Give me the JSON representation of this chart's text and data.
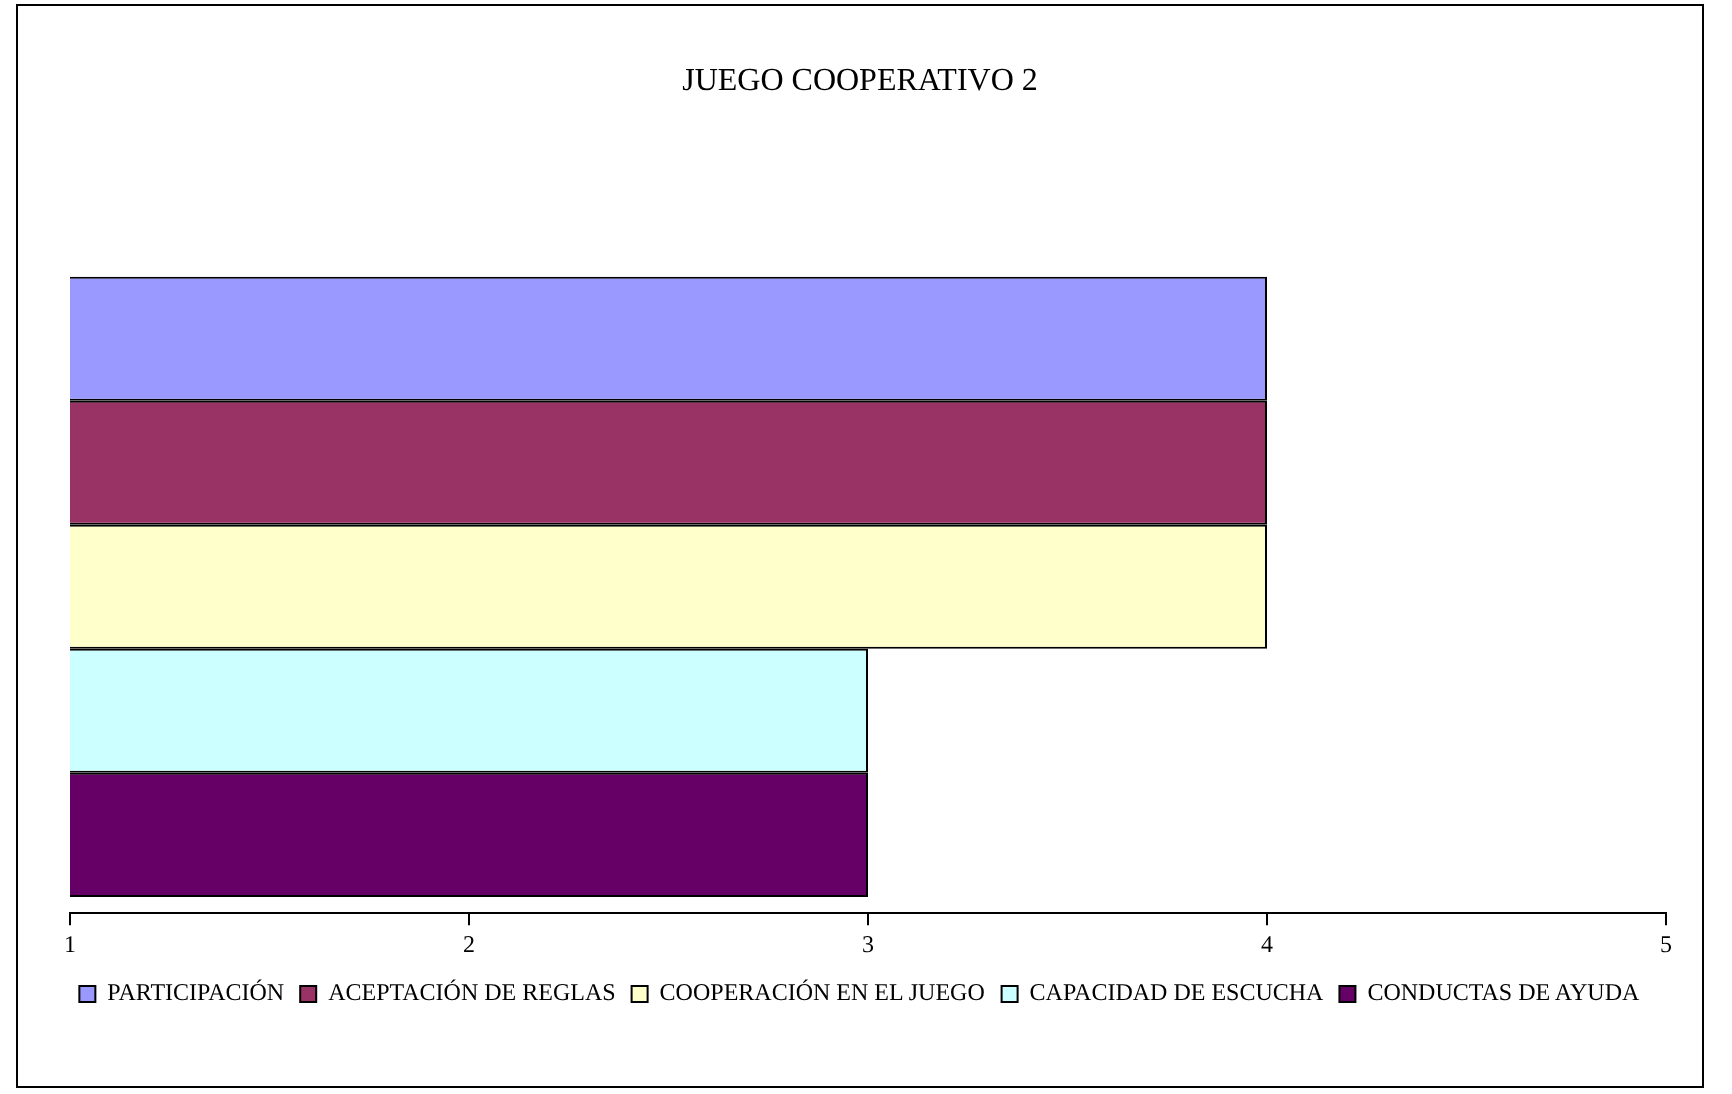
{
  "chart_data": {
    "type": "bar",
    "orientation": "horizontal",
    "title": "JUEGO COOPERATIVO 2",
    "categories": [
      null
    ],
    "series": [
      {
        "name": "PARTICIPACIÓN",
        "color": "#9999ff",
        "values": [
          4
        ]
      },
      {
        "name": "ACEPTACIÓN DE REGLAS",
        "color": "#993366",
        "values": [
          4
        ]
      },
      {
        "name": "COOPERACIÓN EN EL JUEGO",
        "color": "#ffffcc",
        "values": [
          4
        ]
      },
      {
        "name": "CAPACIDAD DE ESCUCHA",
        "color": "#ccffff",
        "values": [
          3
        ]
      },
      {
        "name": "CONDUCTAS DE AYUDA",
        "color": "#660066",
        "values": [
          3
        ]
      }
    ],
    "xlim": [
      1,
      5
    ],
    "xticks": [
      1,
      2,
      3,
      4,
      5
    ],
    "grid": false,
    "legend": "bottom"
  }
}
